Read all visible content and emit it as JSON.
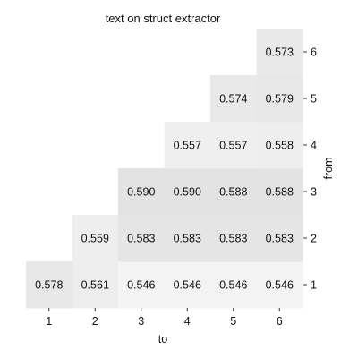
{
  "chart_data": {
    "type": "heatmap",
    "title": "text on struct extractor",
    "xlabel": "to",
    "ylabel": "from",
    "x_categories": [
      "1",
      "2",
      "3",
      "4",
      "5",
      "6"
    ],
    "y_categories": [
      "1",
      "2",
      "3",
      "4",
      "5",
      "6"
    ],
    "y_axis_side": "right",
    "y_order": "bottom-to-top",
    "color_range": [
      0.54,
      0.6
    ],
    "colormap": "greys",
    "cells": [
      {
        "from": "1",
        "to": "1",
        "value": 0.578
      },
      {
        "from": "1",
        "to": "2",
        "value": 0.561
      },
      {
        "from": "1",
        "to": "3",
        "value": 0.546
      },
      {
        "from": "1",
        "to": "4",
        "value": 0.546
      },
      {
        "from": "1",
        "to": "5",
        "value": 0.546
      },
      {
        "from": "1",
        "to": "6",
        "value": 0.546
      },
      {
        "from": "2",
        "to": "2",
        "value": 0.559
      },
      {
        "from": "2",
        "to": "3",
        "value": 0.583
      },
      {
        "from": "2",
        "to": "4",
        "value": 0.583
      },
      {
        "from": "2",
        "to": "5",
        "value": 0.583
      },
      {
        "from": "2",
        "to": "6",
        "value": 0.583
      },
      {
        "from": "3",
        "to": "3",
        "value": 0.59
      },
      {
        "from": "3",
        "to": "4",
        "value": 0.59
      },
      {
        "from": "3",
        "to": "5",
        "value": 0.588
      },
      {
        "from": "3",
        "to": "6",
        "value": 0.588
      },
      {
        "from": "4",
        "to": "4",
        "value": 0.557
      },
      {
        "from": "4",
        "to": "5",
        "value": 0.557
      },
      {
        "from": "4",
        "to": "6",
        "value": 0.558
      },
      {
        "from": "5",
        "to": "5",
        "value": 0.574
      },
      {
        "from": "5",
        "to": "6",
        "value": 0.579
      },
      {
        "from": "6",
        "to": "6",
        "value": 0.573
      }
    ]
  }
}
